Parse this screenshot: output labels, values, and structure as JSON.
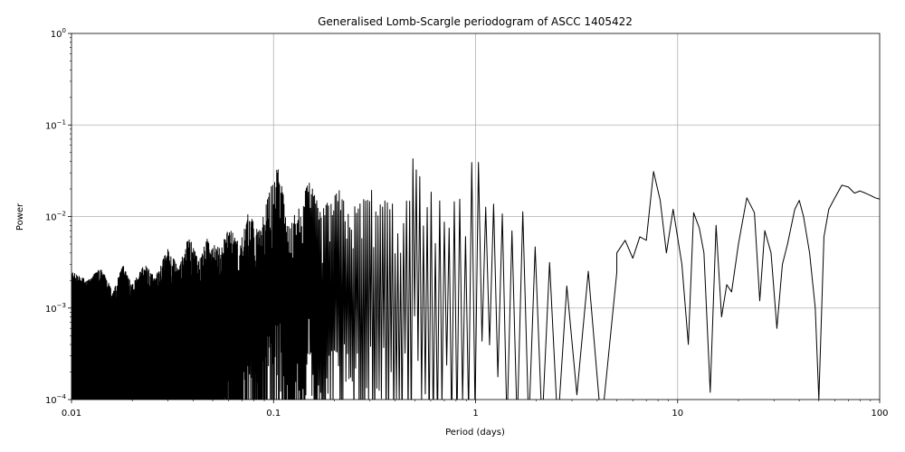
{
  "chart_data": {
    "type": "line",
    "title": "Generalised Lomb-Scargle periodogram of ASCC 1405422",
    "xlabel": "Period (days)",
    "ylabel": "Power",
    "xscale": "log",
    "yscale": "log",
    "xlim": [
      0.01,
      100
    ],
    "ylim": [
      0.0001,
      1
    ],
    "grid": true,
    "line_color": "#000000",
    "grid_color": "#b0b0b0",
    "x_ticks": [
      {
        "value": 0.01,
        "label": "0.01"
      },
      {
        "value": 0.1,
        "label": "0.1"
      },
      {
        "value": 1,
        "label": "1"
      },
      {
        "value": 10,
        "label": "10"
      },
      {
        "value": 100,
        "label": "100"
      }
    ],
    "y_ticks": [
      {
        "value": 0.0001,
        "mantissa": "10",
        "exponent": "−4"
      },
      {
        "value": 0.001,
        "mantissa": "10",
        "exponent": "−3"
      },
      {
        "value": 0.01,
        "mantissa": "10",
        "exponent": "−2"
      },
      {
        "value": 0.1,
        "mantissa": "10",
        "exponent": "−1"
      },
      {
        "value": 1,
        "mantissa": "10",
        "exponent": "0"
      }
    ],
    "notable_peaks": [
      {
        "period": 0.1,
        "power": 0.036
      },
      {
        "period": 0.5,
        "power": 0.07
      },
      {
        "period": 1.0,
        "power": 0.07
      },
      {
        "period": 7.6,
        "power": 0.031
      },
      {
        "period": 22.0,
        "power": 0.016
      },
      {
        "period": 40.0,
        "power": 0.015
      },
      {
        "period": 65.0,
        "power": 0.022
      }
    ],
    "series": [
      {
        "x": [
          0.01,
          0.012,
          0.014,
          0.016,
          0.018,
          0.02,
          0.023,
          0.026,
          0.03,
          0.034,
          0.038,
          0.043,
          0.048,
          0.054,
          0.06,
          0.068,
          0.075,
          0.085,
          0.095,
          0.105,
          0.12,
          0.135,
          0.15,
          0.17,
          0.19,
          0.21,
          0.24,
          0.27,
          0.3,
          0.33,
          0.37,
          0.42,
          0.47,
          0.5,
          0.55,
          0.62,
          0.7,
          0.8,
          0.9,
          1.0,
          1.1,
          1.25,
          1.4,
          1.6,
          1.8,
          2.0,
          2.3,
          2.6,
          3.0,
          3.3,
          3.6,
          4.0,
          4.5,
          5.0,
          5.5,
          6.0,
          6.5,
          7.0,
          7.6,
          8.2,
          8.8,
          9.5,
          10.5,
          11.3,
          12.0,
          12.8,
          13.5,
          14.5,
          15.5,
          16.5,
          17.5,
          18.5,
          20.0,
          22.0,
          24.0,
          25.5,
          27.0,
          29.0,
          31.0,
          33.0,
          35.0,
          38.0,
          40.0,
          42.0,
          45.0,
          48.0,
          50.0,
          53.0,
          56.0,
          60.0,
          65.0,
          70.0,
          75.0,
          80.0,
          85.0,
          90.0,
          95.0,
          100.0
        ],
        "y": [
          0.0025,
          0.002,
          0.0028,
          0.0015,
          0.003,
          0.0018,
          0.003,
          0.0022,
          0.0045,
          0.0028,
          0.006,
          0.0035,
          0.0065,
          0.0045,
          0.008,
          0.005,
          0.011,
          0.007,
          0.018,
          0.036,
          0.01,
          0.013,
          0.025,
          0.012,
          0.015,
          0.02,
          0.012,
          0.015,
          0.022,
          0.014,
          0.018,
          0.01,
          0.02,
          0.07,
          0.015,
          0.02,
          0.014,
          0.016,
          0.018,
          0.07,
          0.016,
          0.02,
          0.012,
          0.014,
          0.01,
          0.012,
          0.006,
          0.008,
          0.004,
          0.007,
          0.003,
          0.0045,
          0.0025,
          0.004,
          0.0055,
          0.0035,
          0.006,
          0.0055,
          0.031,
          0.015,
          0.004,
          0.012,
          0.003,
          0.0004,
          0.011,
          0.0075,
          0.004,
          0.00012,
          0.008,
          0.0008,
          0.0018,
          0.0015,
          0.005,
          0.016,
          0.011,
          0.0012,
          0.007,
          0.004,
          0.0006,
          0.003,
          0.005,
          0.012,
          0.015,
          0.01,
          0.004,
          0.001,
          0.0001,
          0.006,
          0.012,
          0.016,
          0.022,
          0.021,
          0.018,
          0.019,
          0.018,
          0.017,
          0.016,
          0.0155
        ]
      }
    ]
  }
}
